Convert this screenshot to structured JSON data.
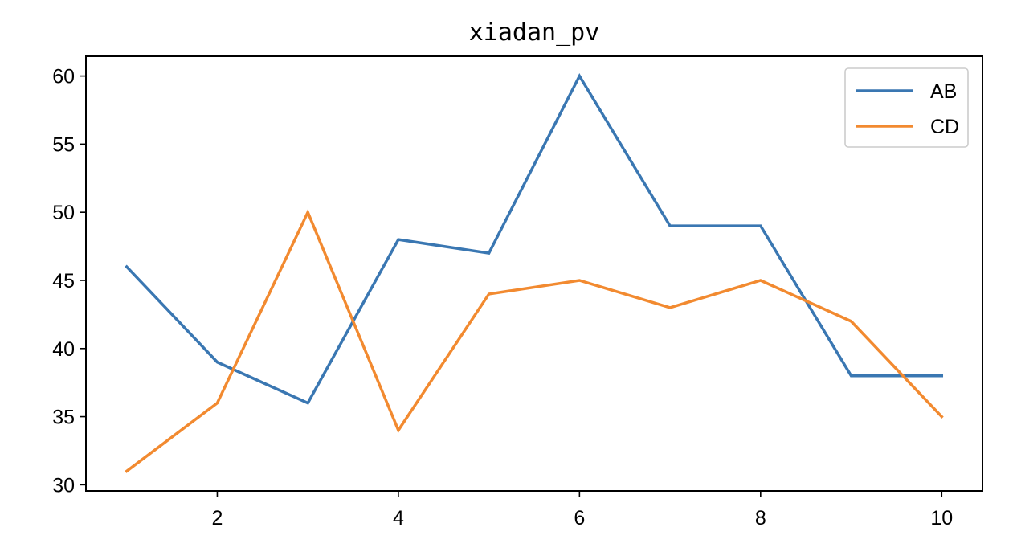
{
  "chart_data": {
    "type": "line",
    "title": "xiadan_pv",
    "xlabel": "",
    "ylabel": "",
    "x": [
      1,
      2,
      3,
      4,
      5,
      6,
      7,
      8,
      9,
      10
    ],
    "series": [
      {
        "name": "AB",
        "color": "#3a77b2",
        "values": [
          46,
          39,
          36,
          48,
          47,
          60,
          49,
          49,
          38,
          38
        ]
      },
      {
        "name": "CD",
        "color": "#f28a30",
        "values": [
          31,
          36,
          50,
          34,
          44,
          45,
          43,
          45,
          42,
          35
        ]
      }
    ],
    "xlim": [
      0.55,
      10.45
    ],
    "ylim": [
      29.55,
      61.45
    ],
    "xticks": [
      2,
      4,
      6,
      8,
      10
    ],
    "yticks": [
      30,
      35,
      40,
      45,
      50,
      55,
      60
    ],
    "grid": false,
    "legend_position": "top-right"
  }
}
